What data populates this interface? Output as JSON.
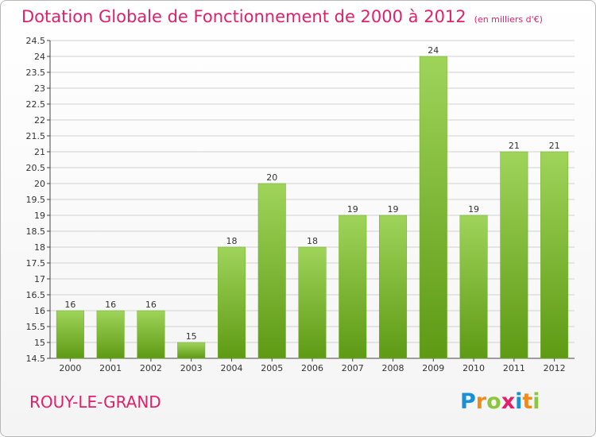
{
  "header": {
    "title": "Dotation Globale de Fonctionnement de 2000 à 2012",
    "subtitle": "(en milliers d'€)"
  },
  "footer": {
    "commune": "ROUY-LE-GRAND",
    "logo_text": "Proxiti"
  },
  "colors": {
    "bar_top": "#9fd45a",
    "bar_bottom": "#5e9a14",
    "title": "#e0206a",
    "grid": "#d0d0d0"
  },
  "chart_data": {
    "type": "bar",
    "title": "Dotation Globale de Fonctionnement de 2000 à 2012",
    "subtitle": "(en milliers d'€)",
    "categories": [
      "2000",
      "2001",
      "2002",
      "2003",
      "2004",
      "2005",
      "2006",
      "2007",
      "2008",
      "2009",
      "2010",
      "2011",
      "2012"
    ],
    "values": [
      16,
      16,
      16,
      15,
      18,
      20,
      18,
      19,
      19,
      24,
      19,
      21,
      21
    ],
    "value_labels": [
      "16",
      "16",
      "16",
      "15",
      "18",
      "20",
      "18",
      "19",
      "19",
      "24",
      "19",
      "21",
      "21"
    ],
    "ylim": [
      14.5,
      24.5
    ],
    "yticks": [
      14.5,
      15,
      15.5,
      16,
      16.5,
      17,
      17.5,
      18,
      18.5,
      19,
      19.5,
      20,
      20.5,
      21,
      21.5,
      22,
      22.5,
      23,
      23.5,
      24,
      24.5
    ],
    "grid": true,
    "legend": "none"
  }
}
